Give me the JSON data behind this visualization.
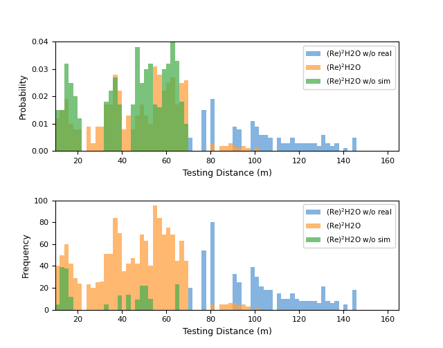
{
  "xlabel": "Testing Distance (m)",
  "ylabel_top": "Probability",
  "ylabel_bottom": "Frequency",
  "colors": {
    "blue": "#5B9BD5",
    "orange": "#FFA040",
    "green": "#4CAF50"
  },
  "legend_labels": [
    "(Re)$^2$H2O w/o real",
    "(Re)$^2$H2O",
    "(Re)$^2$H2O w/o sim"
  ],
  "bin_width": 2,
  "bins_start": 10,
  "bins_end": 165,
  "prob_blue": [
    0.0,
    0.0,
    0.0,
    0.0,
    0.0,
    0.0,
    0.0,
    0.0,
    0.0,
    0.0,
    0.0,
    0.0,
    0.0,
    0.0,
    0.0,
    0.0,
    0.0,
    0.0,
    0.0,
    0.0,
    0.0,
    0.0,
    0.0,
    0.0,
    0.0,
    0.0,
    0.0,
    0.0,
    0.0,
    0.0,
    0.005,
    0.0,
    0.0,
    0.015,
    0.0,
    0.019,
    0.0,
    0.0,
    0.0,
    0.0,
    0.009,
    0.008,
    0.0,
    0.0,
    0.011,
    0.009,
    0.006,
    0.006,
    0.005,
    0.0,
    0.005,
    0.003,
    0.003,
    0.005,
    0.003,
    0.003,
    0.003,
    0.003,
    0.003,
    0.002,
    0.006,
    0.003,
    0.002,
    0.003,
    0.0,
    0.001,
    0.0,
    0.005,
    0.0,
    0.0,
    0.0,
    0.0,
    0.0,
    0.0,
    0.0,
    0.0,
    0.0,
    0.0
  ],
  "prob_orange": [
    0.012,
    0.015,
    0.019,
    0.01,
    0.008,
    0.008,
    0.0,
    0.009,
    0.003,
    0.009,
    0.009,
    0.017,
    0.017,
    0.028,
    0.022,
    0.008,
    0.013,
    0.008,
    0.013,
    0.017,
    0.013,
    0.01,
    0.031,
    0.028,
    0.022,
    0.025,
    0.027,
    0.017,
    0.025,
    0.026,
    0.0,
    0.0,
    0.0,
    0.0,
    0.0,
    0.003,
    0.0,
    0.002,
    0.002,
    0.003,
    0.002,
    0.001,
    0.002,
    0.001,
    0.0,
    0.001,
    0.0,
    0.0,
    0.0,
    0.0,
    0.0,
    0.0,
    0.0,
    0.0,
    0.0,
    0.0,
    0.0,
    0.0,
    0.0,
    0.0,
    0.0,
    0.0,
    0.0,
    0.0,
    0.0,
    0.0,
    0.0,
    0.0,
    0.0,
    0.0,
    0.0,
    0.0,
    0.0,
    0.0,
    0.0,
    0.0,
    0.0,
    0.0
  ],
  "prob_green": [
    0.015,
    0.015,
    0.032,
    0.025,
    0.02,
    0.012,
    0.0,
    0.0,
    0.0,
    0.0,
    0.0,
    0.018,
    0.022,
    0.027,
    0.017,
    0.0,
    0.0,
    0.017,
    0.038,
    0.025,
    0.03,
    0.032,
    0.017,
    0.016,
    0.03,
    0.032,
    0.04,
    0.033,
    0.018,
    0.01,
    0.0,
    0.0,
    0.0,
    0.0,
    0.0,
    0.0,
    0.0,
    0.0,
    0.0,
    0.0,
    0.0,
    0.0,
    0.0,
    0.0,
    0.0,
    0.0,
    0.0,
    0.0,
    0.0,
    0.0,
    0.0,
    0.0,
    0.0,
    0.0,
    0.0,
    0.0,
    0.0,
    0.0,
    0.0,
    0.0,
    0.0,
    0.0,
    0.0,
    0.0,
    0.0,
    0.0,
    0.0,
    0.0,
    0.0,
    0.0,
    0.0,
    0.0,
    0.0,
    0.0,
    0.0,
    0.0,
    0.0,
    0.0
  ],
  "freq_blue": [
    0,
    0,
    0,
    0,
    0,
    0,
    0,
    0,
    0,
    0,
    0,
    0,
    0,
    0,
    0,
    0,
    0,
    0,
    0,
    0,
    0,
    0,
    0,
    0,
    0,
    0,
    0,
    0,
    0,
    0,
    20,
    0,
    0,
    54,
    0,
    80,
    0,
    0,
    0,
    0,
    33,
    25,
    0,
    0,
    39,
    30,
    21,
    18,
    18,
    0,
    15,
    10,
    10,
    15,
    10,
    8,
    8,
    8,
    8,
    6,
    21,
    8,
    6,
    8,
    0,
    5,
    0,
    18,
    0,
    0,
    0,
    0,
    0,
    0,
    0,
    0,
    0,
    0
  ],
  "freq_orange": [
    40,
    50,
    60,
    42,
    29,
    24,
    0,
    23,
    20,
    25,
    26,
    51,
    51,
    84,
    70,
    35,
    42,
    47,
    42,
    69,
    63,
    40,
    95,
    84,
    69,
    75,
    69,
    45,
    63,
    45,
    0,
    0,
    0,
    0,
    0,
    5,
    0,
    5,
    5,
    6,
    6,
    4,
    5,
    3,
    0,
    2,
    0,
    0,
    0,
    0,
    0,
    0,
    0,
    0,
    0,
    0,
    0,
    0,
    0,
    0,
    0,
    0,
    0,
    0,
    0,
    0,
    0,
    0,
    0,
    0,
    0,
    0,
    0,
    0,
    0,
    0,
    0,
    0
  ],
  "freq_green": [
    5,
    39,
    38,
    12,
    0,
    0,
    0,
    0,
    0,
    0,
    0,
    5,
    0,
    0,
    13,
    0,
    14,
    0,
    9,
    22,
    22,
    10,
    0,
    0,
    0,
    0,
    0,
    23,
    0,
    0,
    0,
    0,
    0,
    0,
    0,
    0,
    0,
    0,
    0,
    0,
    0,
    0,
    0,
    0,
    0,
    0,
    0,
    0,
    0,
    0,
    0,
    0,
    0,
    0,
    0,
    0,
    0,
    0,
    0,
    0,
    0,
    0,
    0,
    0,
    0,
    0,
    0,
    0,
    0,
    0,
    0,
    0,
    0,
    0,
    0,
    0,
    0,
    0
  ],
  "xlim": [
    10,
    165
  ],
  "xticks": [
    20,
    40,
    60,
    80,
    100,
    120,
    140,
    160
  ],
  "ylim_prob": [
    0.0,
    0.04
  ],
  "ylim_freq": [
    0,
    100
  ],
  "yticks_prob": [
    0.0,
    0.01,
    0.02,
    0.03,
    0.04
  ],
  "yticks_freq": [
    0,
    20,
    40,
    60,
    80,
    100
  ],
  "alpha": 0.75,
  "figsize": [
    6.4,
    5.03
  ],
  "dpi": 100,
  "hspace": 0.45
}
